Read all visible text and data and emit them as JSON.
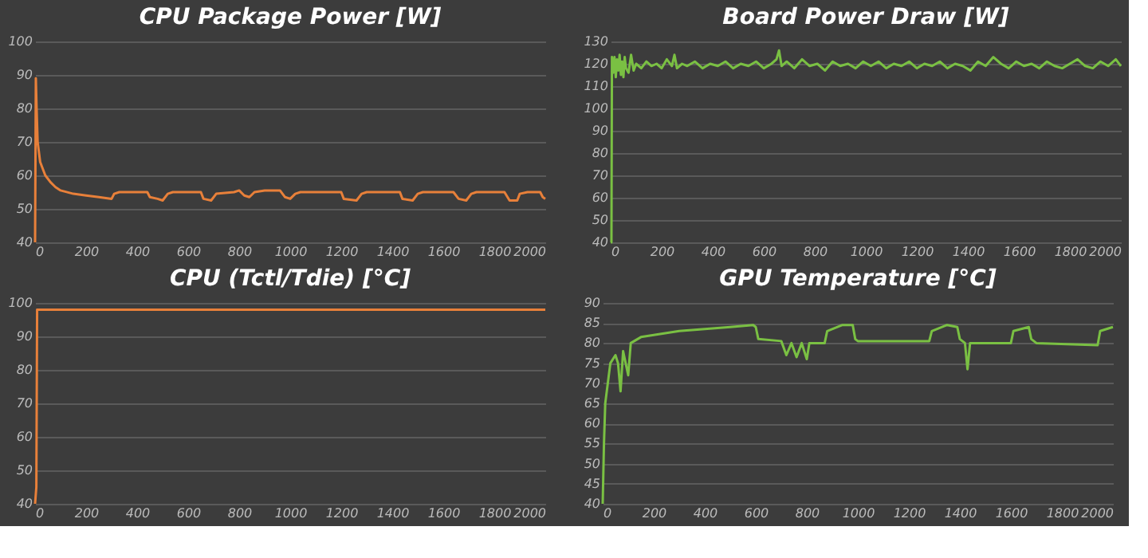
{
  "chart_data": [
    {
      "type": "line",
      "title": "CPU Package Power [W]",
      "x": [
        0,
        3,
        6,
        10,
        20,
        40,
        60,
        80,
        100,
        150,
        200,
        250,
        300,
        310,
        330,
        440,
        450,
        480,
        500,
        520,
        540,
        650,
        660,
        690,
        710,
        780,
        800,
        820,
        840,
        860,
        900,
        960,
        980,
        1000,
        1020,
        1040,
        1200,
        1210,
        1260,
        1280,
        1300,
        1430,
        1440,
        1480,
        1500,
        1520,
        1640,
        1660,
        1690,
        1710,
        1730,
        1840,
        1860,
        1890,
        1900,
        1930,
        1980,
        1990,
        2000
      ],
      "series": [
        {
          "color": "#e8803a",
          "values": [
            40,
            89,
            80,
            70,
            64,
            60,
            58,
            56.5,
            55.5,
            54.5,
            54,
            53.5,
            53,
            54.5,
            55,
            55,
            53.5,
            53,
            52.5,
            54.5,
            55,
            55,
            53,
            52.5,
            54.5,
            55,
            55.5,
            54,
            53.5,
            55,
            55.5,
            55.5,
            53.5,
            53,
            54.5,
            55,
            55,
            53,
            52.5,
            54.5,
            55,
            55,
            53,
            52.5,
            54.5,
            55,
            55,
            53,
            52.5,
            54.5,
            55,
            55,
            52.5,
            52.5,
            54.5,
            55,
            55,
            53.5,
            53
          ]
        }
      ],
      "xlim": [
        0,
        2000
      ],
      "xticks": [
        0,
        200,
        400,
        600,
        800,
        1000,
        1200,
        1400,
        1600,
        1800,
        2000
      ],
      "ylim": [
        40,
        100
      ],
      "yticks": [
        40,
        50,
        60,
        70,
        80,
        90,
        100
      ],
      "grid": "y"
    },
    {
      "type": "line",
      "title": "Board Power Draw [W]",
      "x": [
        0,
        3,
        5,
        10,
        15,
        20,
        25,
        30,
        35,
        40,
        45,
        50,
        55,
        60,
        70,
        80,
        90,
        100,
        120,
        140,
        160,
        180,
        200,
        220,
        240,
        250,
        260,
        280,
        300,
        330,
        360,
        390,
        420,
        450,
        480,
        510,
        540,
        570,
        600,
        630,
        650,
        660,
        670,
        690,
        720,
        750,
        780,
        810,
        840,
        870,
        900,
        930,
        960,
        990,
        1020,
        1050,
        1080,
        1110,
        1140,
        1170,
        1200,
        1230,
        1260,
        1290,
        1320,
        1350,
        1380,
        1410,
        1440,
        1470,
        1500,
        1530,
        1560,
        1590,
        1620,
        1650,
        1680,
        1710,
        1740,
        1770,
        1800,
        1830,
        1860,
        1890,
        1920,
        1950,
        1980,
        2000
      ],
      "series": [
        {
          "color": "#7ac043",
          "values": [
            40,
            40,
            123,
            116,
            123,
            114,
            122,
            117,
            124,
            115,
            121,
            114,
            123,
            118,
            116,
            124,
            117,
            120,
            118,
            121,
            119,
            120,
            118,
            122,
            119,
            124,
            118,
            120,
            119,
            121,
            118,
            120,
            119,
            121,
            118,
            120,
            119,
            121,
            118,
            120,
            122,
            126,
            119,
            121,
            118,
            122,
            119,
            120,
            117,
            121,
            119,
            120,
            118,
            121,
            119,
            121,
            118,
            120,
            119,
            121,
            118,
            120,
            119,
            121,
            118,
            120,
            119,
            117,
            121,
            119,
            123,
            120,
            118,
            121,
            119,
            120,
            118,
            121,
            119,
            118,
            120,
            122,
            119,
            118,
            121,
            119,
            122,
            119
          ]
        }
      ],
      "xlim": [
        0,
        2000
      ],
      "xticks": [
        0,
        200,
        400,
        600,
        800,
        1000,
        1200,
        1400,
        1600,
        1800,
        2000
      ],
      "ylim": [
        40,
        130
      ],
      "yticks": [
        40,
        50,
        60,
        70,
        80,
        90,
        100,
        110,
        120,
        130
      ],
      "grid": "y"
    },
    {
      "type": "line",
      "title": "CPU (Tctl/Tdie) [°C]",
      "x": [
        0,
        5,
        8,
        2000
      ],
      "series": [
        {
          "color": "#e8803a",
          "values": [
            40,
            45,
            98,
            98
          ]
        }
      ],
      "xlim": [
        0,
        2000
      ],
      "xticks": [
        0,
        200,
        400,
        600,
        800,
        1000,
        1200,
        1400,
        1600,
        1800,
        2000
      ],
      "ylim": [
        40,
        100
      ],
      "yticks": [
        40,
        50,
        60,
        70,
        80,
        90,
        100
      ],
      "grid": "y"
    },
    {
      "type": "line",
      "title": "GPU Temperature [°C]",
      "x": [
        0,
        5,
        10,
        20,
        30,
        50,
        60,
        70,
        80,
        100,
        110,
        150,
        200,
        300,
        400,
        500,
        590,
        600,
        610,
        700,
        720,
        740,
        760,
        780,
        800,
        810,
        870,
        880,
        940,
        980,
        990,
        1000,
        1280,
        1290,
        1350,
        1390,
        1400,
        1420,
        1430,
        1440,
        1600,
        1610,
        1670,
        1680,
        1700,
        1940,
        1950,
        2000
      ],
      "series": [
        {
          "color": "#7ac043",
          "values": [
            40,
            55,
            65,
            70,
            75,
            77,
            75,
            68,
            78,
            72,
            80,
            81.5,
            82,
            83,
            83.5,
            84,
            84.5,
            84,
            81,
            80.5,
            77,
            80,
            76.5,
            80,
            76,
            80,
            80,
            83,
            84.5,
            84.5,
            81,
            80.5,
            80.5,
            83,
            84.5,
            84,
            81,
            80,
            73.5,
            80,
            80,
            83,
            84,
            81,
            80,
            79.5,
            83,
            84
          ]
        }
      ],
      "xlim": [
        0,
        2000
      ],
      "xticks": [
        0,
        200,
        400,
        600,
        800,
        1000,
        1200,
        1400,
        1600,
        1800,
        2000
      ],
      "ylim": [
        40,
        90
      ],
      "yticks": [
        40,
        45,
        50,
        55,
        60,
        65,
        70,
        75,
        80,
        85,
        90
      ],
      "grid": "y"
    }
  ]
}
